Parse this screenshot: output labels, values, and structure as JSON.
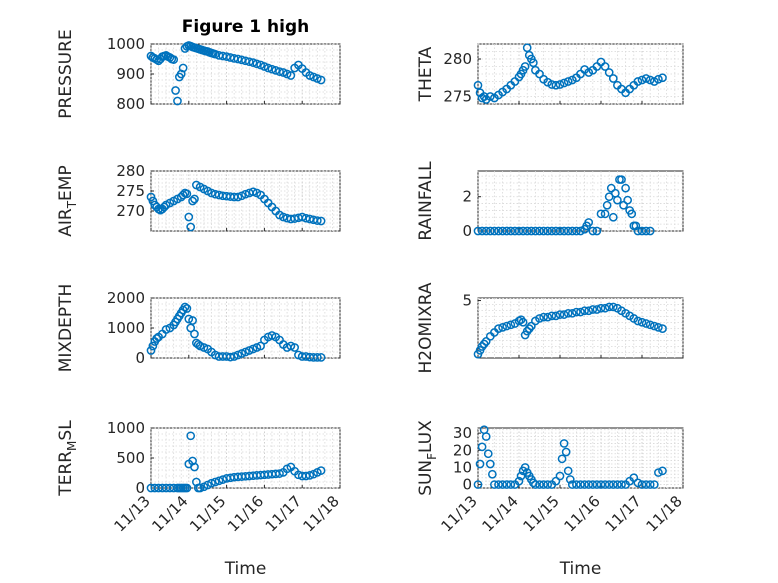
{
  "chart_data": [
    {
      "type": "scatter",
      "title": "Figure 1 high",
      "ylabel": "PRESSURE",
      "xlabel": "",
      "ylim": [
        800,
        1000
      ],
      "yticks": [
        "800",
        "900",
        "1000"
      ],
      "xlim": [
        0,
        5
      ],
      "xtick_labels": [],
      "x": [
        0.0,
        0.05,
        0.1,
        0.15,
        0.2,
        0.25,
        0.3,
        0.35,
        0.4,
        0.45,
        0.5,
        0.55,
        0.6,
        0.65,
        0.7,
        0.75,
        0.8,
        0.85,
        0.9,
        0.95,
        1.0,
        1.05,
        1.1,
        1.15,
        1.2,
        1.25,
        1.3,
        1.35,
        1.4,
        1.45,
        1.5,
        1.55,
        1.6,
        1.65,
        1.7,
        1.8,
        1.9,
        2.0,
        2.1,
        2.2,
        2.3,
        2.4,
        2.5,
        2.6,
        2.7,
        2.8,
        2.9,
        3.0,
        3.1,
        3.2,
        3.3,
        3.4,
        3.5,
        3.6,
        3.7,
        3.8,
        3.9,
        4.0,
        4.1,
        4.2,
        4.3,
        4.4,
        4.5
      ],
      "y": [
        960,
        955,
        952,
        948,
        944,
        950,
        958,
        960,
        962,
        958,
        955,
        950,
        948,
        845,
        810,
        890,
        900,
        920,
        985,
        992,
        995,
        993,
        990,
        988,
        986,
        984,
        982,
        980,
        978,
        976,
        975,
        972,
        970,
        968,
        966,
        962,
        960,
        958,
        955,
        952,
        950,
        947,
        944,
        941,
        938,
        934,
        930,
        925,
        920,
        916,
        912,
        908,
        905,
        900,
        895,
        920,
        930,
        918,
        905,
        895,
        890,
        885,
        880
      ],
      "series": [
        {
          "color": "#0072BD"
        }
      ]
    },
    {
      "type": "scatter",
      "title": "",
      "ylabel": "THETA",
      "xlabel": "",
      "ylim": [
        274,
        282
      ],
      "yticks": [
        "275",
        "280"
      ],
      "xlim": [
        0,
        5
      ],
      "xtick_labels": [],
      "x": [
        0.0,
        0.05,
        0.1,
        0.15,
        0.2,
        0.3,
        0.4,
        0.5,
        0.6,
        0.7,
        0.8,
        0.9,
        1.0,
        1.05,
        1.1,
        1.15,
        1.2,
        1.25,
        1.3,
        1.35,
        1.4,
        1.5,
        1.6,
        1.7,
        1.8,
        1.9,
        2.0,
        2.1,
        2.2,
        2.3,
        2.4,
        2.5,
        2.6,
        2.7,
        2.8,
        2.9,
        3.0,
        3.1,
        3.2,
        3.3,
        3.4,
        3.5,
        3.6,
        3.7,
        3.8,
        3.9,
        4.0,
        4.1,
        4.2,
        4.3,
        4.4,
        4.5
      ],
      "y": [
        276.5,
        275.5,
        274.8,
        275.0,
        274.6,
        275.0,
        274.8,
        275.2,
        275.6,
        276.0,
        276.5,
        277.0,
        277.6,
        278.0,
        278.5,
        279.0,
        281.5,
        280.5,
        280.0,
        279.5,
        278.5,
        278.0,
        277.3,
        276.9,
        276.6,
        276.5,
        276.6,
        276.8,
        277.0,
        277.2,
        277.5,
        278.0,
        278.6,
        278.2,
        278.5,
        279.0,
        279.6,
        279.0,
        278.2,
        277.4,
        276.5,
        276.0,
        275.5,
        276.0,
        276.5,
        277.0,
        277.2,
        277.4,
        277.2,
        277.0,
        277.3,
        277.5
      ],
      "series": [
        {
          "color": "#0072BD"
        }
      ]
    },
    {
      "type": "scatter",
      "title": "",
      "ylabel": "AIR_TEMP",
      "xlabel": "",
      "ylim": [
        265,
        280
      ],
      "yticks": [
        "270",
        "275",
        "280"
      ],
      "xlim": [
        0,
        5
      ],
      "xtick_labels": [],
      "x": [
        0.0,
        0.05,
        0.1,
        0.15,
        0.2,
        0.25,
        0.3,
        0.35,
        0.4,
        0.5,
        0.6,
        0.7,
        0.8,
        0.85,
        0.9,
        0.95,
        1.0,
        1.05,
        1.1,
        1.15,
        1.2,
        1.3,
        1.4,
        1.5,
        1.6,
        1.7,
        1.8,
        1.9,
        2.0,
        2.1,
        2.2,
        2.3,
        2.4,
        2.5,
        2.6,
        2.7,
        2.8,
        2.9,
        3.0,
        3.1,
        3.2,
        3.3,
        3.4,
        3.5,
        3.6,
        3.7,
        3.8,
        3.9,
        4.0,
        4.1,
        4.2,
        4.3,
        4.4,
        4.5
      ],
      "y": [
        273.5,
        272.5,
        271.5,
        271.0,
        270.5,
        270.2,
        270.5,
        271.0,
        271.5,
        272.0,
        272.5,
        273.0,
        273.5,
        274.0,
        274.5,
        274.3,
        268.5,
        266.0,
        272.5,
        273.0,
        276.5,
        276.0,
        275.5,
        275.0,
        274.5,
        274.2,
        274.0,
        273.8,
        273.7,
        273.6,
        273.5,
        273.5,
        273.8,
        274.2,
        274.5,
        274.8,
        274.5,
        274.0,
        273.0,
        272.0,
        271.0,
        270.0,
        269.0,
        268.5,
        268.2,
        268.0,
        268.1,
        268.3,
        268.5,
        268.2,
        268.0,
        267.8,
        267.6,
        267.5
      ],
      "series": [
        {
          "color": "#0072BD"
        }
      ]
    },
    {
      "type": "scatter",
      "title": "",
      "ylabel": "RAINFALL",
      "xlabel": "",
      "ylim": [
        0,
        3.5
      ],
      "yticks": [
        "0",
        "2"
      ],
      "xlim": [
        0,
        5
      ],
      "xtick_labels": [],
      "x": [
        0.0,
        0.1,
        0.2,
        0.3,
        0.4,
        0.5,
        0.6,
        0.7,
        0.8,
        0.9,
        1.0,
        1.1,
        1.2,
        1.3,
        1.4,
        1.5,
        1.6,
        1.7,
        1.8,
        1.9,
        2.0,
        2.1,
        2.2,
        2.3,
        2.4,
        2.5,
        2.6,
        2.65,
        2.7,
        2.8,
        2.9,
        3.0,
        3.1,
        3.15,
        3.2,
        3.25,
        3.3,
        3.35,
        3.4,
        3.45,
        3.5,
        3.55,
        3.6,
        3.65,
        3.7,
        3.75,
        3.8,
        3.85,
        3.9,
        4.0,
        4.1,
        4.2
      ],
      "y": [
        0,
        0,
        0,
        0,
        0,
        0,
        0,
        0,
        0,
        0,
        0,
        0,
        0,
        0,
        0,
        0,
        0,
        0,
        0,
        0,
        0,
        0,
        0,
        0,
        0,
        0,
        0.1,
        0.3,
        0.5,
        0,
        0,
        1.0,
        1.0,
        1.5,
        2.0,
        2.5,
        0.8,
        2.2,
        1.8,
        3.0,
        3.0,
        1.5,
        2.5,
        1.8,
        1.2,
        1.0,
        0.3,
        0.3,
        0,
        0,
        0,
        0
      ],
      "series": [
        {
          "color": "#0072BD"
        }
      ]
    },
    {
      "type": "scatter",
      "title": "",
      "ylabel": "MIXDEPTH",
      "xlabel": "",
      "ylim": [
        0,
        2000
      ],
      "yticks": [
        "0",
        "1000",
        "2000"
      ],
      "xlim": [
        0,
        5
      ],
      "xtick_labels": [],
      "x": [
        0.0,
        0.05,
        0.1,
        0.15,
        0.2,
        0.3,
        0.4,
        0.5,
        0.6,
        0.65,
        0.7,
        0.75,
        0.8,
        0.85,
        0.9,
        0.95,
        1.0,
        1.05,
        1.1,
        1.15,
        1.2,
        1.25,
        1.3,
        1.4,
        1.5,
        1.6,
        1.7,
        1.8,
        1.9,
        2.0,
        2.1,
        2.2,
        2.3,
        2.4,
        2.5,
        2.6,
        2.7,
        2.8,
        2.9,
        3.0,
        3.1,
        3.2,
        3.3,
        3.4,
        3.5,
        3.6,
        3.7,
        3.8,
        3.9,
        4.0,
        4.1,
        4.2,
        4.3,
        4.4,
        4.5
      ],
      "y": [
        250,
        400,
        550,
        650,
        700,
        800,
        950,
        1000,
        1100,
        1200,
        1300,
        1400,
        1500,
        1600,
        1700,
        1650,
        1300,
        1000,
        1250,
        800,
        500,
        450,
        400,
        350,
        300,
        200,
        100,
        50,
        50,
        50,
        30,
        50,
        100,
        150,
        200,
        250,
        300,
        350,
        400,
        600,
        700,
        750,
        700,
        600,
        450,
        350,
        400,
        350,
        100,
        50,
        50,
        30,
        20,
        20,
        20
      ],
      "series": [
        {
          "color": "#0072BD"
        }
      ]
    },
    {
      "type": "scatter",
      "title": "",
      "ylabel": "H2OMIXRA",
      "xlabel": "",
      "ylim": [
        0.5,
        5.2
      ],
      "yticks": [
        "5"
      ],
      "xlim": [
        0,
        5
      ],
      "xtick_labels": [],
      "x": [
        0.0,
        0.05,
        0.1,
        0.15,
        0.2,
        0.3,
        0.4,
        0.5,
        0.6,
        0.7,
        0.8,
        0.9,
        1.0,
        1.05,
        1.1,
        1.15,
        1.2,
        1.25,
        1.3,
        1.4,
        1.5,
        1.6,
        1.7,
        1.8,
        1.9,
        2.0,
        2.1,
        2.2,
        2.3,
        2.4,
        2.5,
        2.6,
        2.7,
        2.8,
        2.9,
        3.0,
        3.1,
        3.2,
        3.3,
        3.4,
        3.5,
        3.6,
        3.7,
        3.8,
        3.9,
        4.0,
        4.1,
        4.2,
        4.3,
        4.4,
        4.5
      ],
      "y": [
        0.8,
        1.1,
        1.4,
        1.6,
        1.8,
        2.2,
        2.5,
        2.8,
        2.9,
        3.0,
        3.1,
        3.2,
        3.4,
        3.5,
        3.3,
        2.3,
        2.6,
        2.8,
        3.0,
        3.4,
        3.6,
        3.7,
        3.7,
        3.8,
        3.8,
        3.9,
        3.9,
        4.0,
        4.0,
        4.1,
        4.1,
        4.2,
        4.2,
        4.3,
        4.3,
        4.4,
        4.4,
        4.5,
        4.5,
        4.4,
        4.2,
        4.0,
        3.8,
        3.6,
        3.4,
        3.3,
        3.2,
        3.1,
        3.0,
        2.9,
        2.8
      ],
      "series": [
        {
          "color": "#0072BD"
        }
      ]
    },
    {
      "type": "scatter",
      "title": "",
      "ylabel": "TERR_MSL",
      "xlabel": "Time",
      "ylim": [
        0,
        1000
      ],
      "yticks": [
        "0",
        "500",
        "1000"
      ],
      "xlim": [
        0,
        5
      ],
      "xtick_labels": [
        "11/13",
        "11/14",
        "11/15",
        "11/16",
        "11/17",
        "11/18"
      ],
      "x": [
        0.0,
        0.1,
        0.2,
        0.3,
        0.4,
        0.5,
        0.6,
        0.7,
        0.75,
        0.8,
        0.85,
        0.9,
        0.95,
        1.0,
        1.05,
        1.1,
        1.15,
        1.2,
        1.25,
        1.3,
        1.4,
        1.5,
        1.6,
        1.7,
        1.8,
        1.9,
        2.0,
        2.1,
        2.2,
        2.3,
        2.4,
        2.5,
        2.6,
        2.7,
        2.8,
        2.9,
        3.0,
        3.1,
        3.2,
        3.3,
        3.4,
        3.5,
        3.6,
        3.7,
        3.8,
        3.9,
        4.0,
        4.1,
        4.2,
        4.3,
        4.4,
        4.5
      ],
      "y": [
        0,
        0,
        0,
        0,
        0,
        0,
        0,
        0,
        0,
        0,
        0,
        0,
        0,
        400,
        870,
        450,
        350,
        100,
        0,
        0,
        20,
        50,
        80,
        100,
        120,
        140,
        160,
        170,
        180,
        185,
        190,
        195,
        200,
        205,
        210,
        215,
        220,
        225,
        230,
        235,
        240,
        260,
        320,
        350,
        280,
        220,
        200,
        200,
        210,
        230,
        260,
        290
      ],
      "series": [
        {
          "color": "#0072BD"
        }
      ]
    },
    {
      "type": "scatter",
      "title": "",
      "ylabel": "SUN_FLUX",
      "xlabel": "Time",
      "ylim": [
        -2,
        33
      ],
      "yticks": [
        "0",
        "10",
        "20",
        "30"
      ],
      "xlim": [
        0,
        5
      ],
      "xtick_labels": [
        "11/13",
        "11/14",
        "11/15",
        "11/16",
        "11/17",
        "11/18"
      ],
      "x": [
        0.0,
        0.05,
        0.1,
        0.15,
        0.2,
        0.25,
        0.3,
        0.35,
        0.4,
        0.5,
        0.6,
        0.7,
        0.8,
        0.9,
        1.0,
        1.05,
        1.1,
        1.15,
        1.2,
        1.25,
        1.3,
        1.35,
        1.4,
        1.5,
        1.6,
        1.7,
        1.8,
        1.9,
        2.0,
        2.05,
        2.1,
        2.15,
        2.2,
        2.25,
        2.3,
        2.4,
        2.5,
        2.6,
        2.7,
        2.8,
        2.9,
        3.0,
        3.1,
        3.2,
        3.3,
        3.4,
        3.5,
        3.6,
        3.7,
        3.8,
        3.9,
        4.0,
        4.1,
        4.2,
        4.3,
        4.4,
        4.5
      ],
      "y": [
        0,
        12,
        22,
        32,
        28,
        18,
        12,
        6,
        0,
        0,
        0,
        0,
        0,
        0,
        2,
        5,
        8,
        10,
        7,
        5,
        3,
        1,
        0,
        0,
        0,
        0,
        0,
        2,
        5,
        15,
        24,
        19,
        8,
        3,
        0,
        0,
        0,
        0,
        0,
        0,
        0,
        0,
        0,
        0,
        0,
        0,
        0,
        0,
        2,
        4,
        1,
        0,
        0,
        0,
        0,
        7,
        8
      ],
      "series": [
        {
          "color": "#0072BD"
        }
      ]
    }
  ]
}
